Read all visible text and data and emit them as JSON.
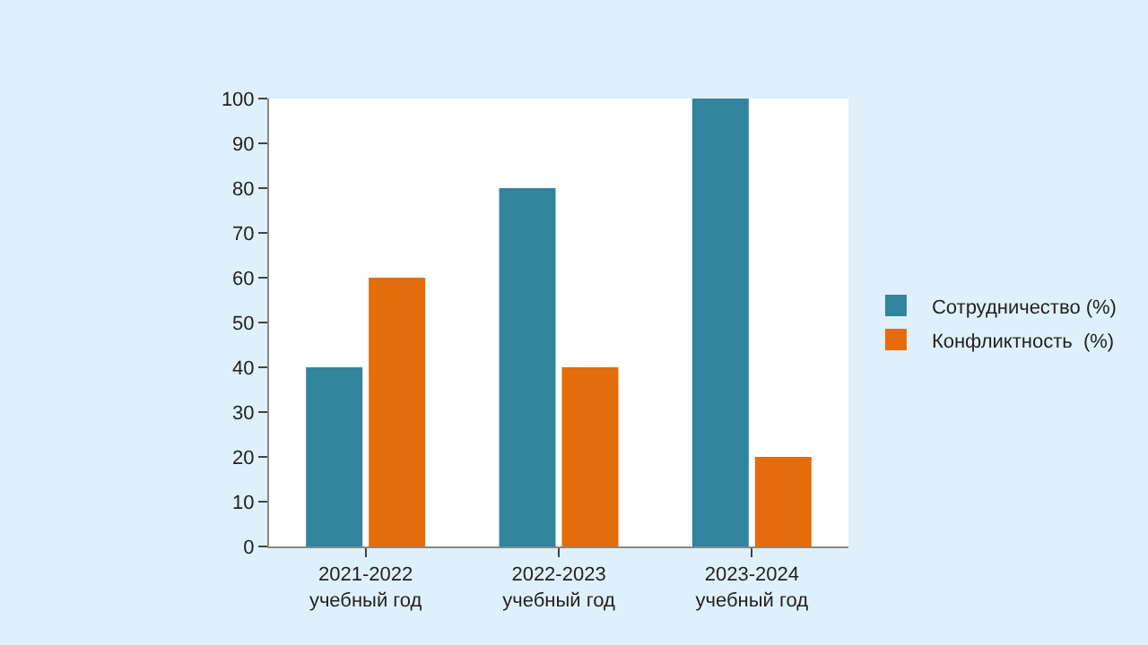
{
  "chart_data": {
    "type": "bar",
    "categories": [
      "2021-2022\nучебный год",
      "2022-2023\nучебный год",
      "2023-2024\nучебный год"
    ],
    "series": [
      {
        "name": "Сотрудничество (%)",
        "color": "#31849b",
        "values": [
          40,
          80,
          100
        ]
      },
      {
        "name": "Конфликтность  (%)",
        "color": "#e46c0a",
        "values": [
          60,
          40,
          20
        ]
      }
    ],
    "ylim": [
      0,
      100
    ],
    "yticks": [
      0,
      10,
      20,
      30,
      40,
      50,
      60,
      70,
      80,
      90,
      100
    ],
    "grid": false,
    "legend": "right"
  }
}
